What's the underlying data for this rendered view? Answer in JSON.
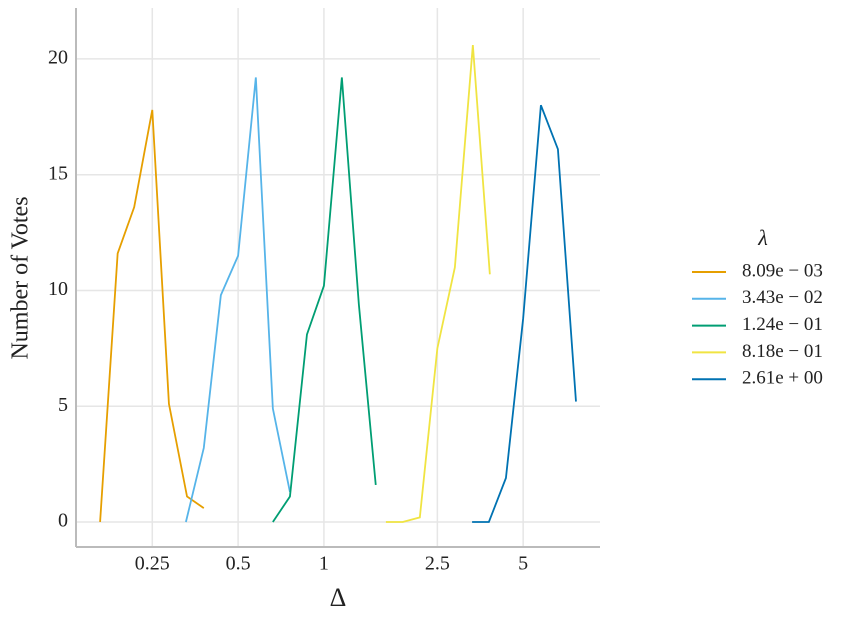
{
  "chart_data": {
    "type": "line",
    "xlabel": "Δ",
    "ylabel": "Number of Votes",
    "legend_title": "λ",
    "xscale": "log",
    "grid": true,
    "legend": "right",
    "xlim": [
      0.135,
      9.3
    ],
    "ylim": [
      -1.08,
      22.2
    ],
    "xticks": [
      0.25,
      0.5,
      1,
      2.5,
      5
    ],
    "yticks": [
      0,
      5,
      10,
      15,
      20
    ],
    "series": [
      {
        "name": "8.09e − 03",
        "color": "#e69f00",
        "x": [
          0.164,
          0.189,
          0.216,
          0.25,
          0.286,
          0.331,
          0.379
        ],
        "values": [
          0,
          11.6,
          13.6,
          17.8,
          5.1,
          1.1,
          0.6
        ]
      },
      {
        "name": "3.43e − 02",
        "color": "#56b4e9",
        "x": [
          0.328,
          0.379,
          0.435,
          0.5,
          0.577,
          0.662,
          0.76
        ],
        "values": [
          0,
          3.2,
          9.8,
          11.5,
          19.2,
          4.9,
          1.3
        ]
      },
      {
        "name": "1.24e − 01",
        "color": "#009e73",
        "x": [
          0.662,
          0.76,
          0.872,
          1,
          1.156,
          1.326,
          1.52
        ],
        "values": [
          0,
          1.1,
          8.1,
          10.2,
          19.2,
          9.4,
          1.6
        ]
      },
      {
        "name": "8.18e − 01",
        "color": "#f0e442",
        "x": [
          1.65,
          1.89,
          2.17,
          2.5,
          2.88,
          3.33,
          3.82
        ],
        "values": [
          0,
          0,
          0.2,
          7.5,
          11,
          20.6,
          10.7
        ]
      },
      {
        "name": "2.61e + 00",
        "color": "#0072b2",
        "x": [
          3.31,
          3.79,
          4.35,
          5,
          5.77,
          6.62,
          7.66
        ],
        "values": [
          0,
          0,
          1.9,
          8.8,
          18.0,
          16.1,
          5.2
        ]
      }
    ]
  }
}
